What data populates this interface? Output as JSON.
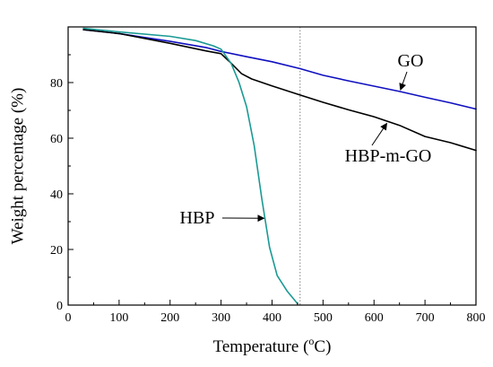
{
  "chart_data": {
    "type": "line",
    "title": "",
    "xlabel": "Temperature",
    "xlabel_unit_superscript": "o",
    "xlabel_unit": "C",
    "ylabel": "Weight percentage (%)",
    "xlim": [
      0,
      800
    ],
    "ylim": [
      0,
      100
    ],
    "xticks": [
      0,
      100,
      200,
      300,
      400,
      500,
      600,
      700,
      800
    ],
    "yticks": [
      0,
      20,
      40,
      60,
      80
    ],
    "grid": false,
    "legend": "none",
    "reference_lines": [
      {
        "axis": "x",
        "value": 455,
        "style": "dotted",
        "color": "#808080"
      }
    ],
    "series": [
      {
        "name": "GO",
        "color": "#1010c0",
        "points": [
          [
            30,
            99
          ],
          [
            100,
            97.6
          ],
          [
            200,
            94.8
          ],
          [
            270,
            92.6
          ],
          [
            300,
            91.2
          ],
          [
            350,
            89.3
          ],
          [
            400,
            87.5
          ],
          [
            455,
            85
          ],
          [
            500,
            82.6
          ],
          [
            550,
            80.6
          ],
          [
            600,
            78.7
          ],
          [
            650,
            76.8
          ],
          [
            700,
            74.7
          ],
          [
            750,
            72.7
          ],
          [
            800,
            70.5
          ]
        ]
      },
      {
        "name": "HBP-m-GO",
        "color": "#000000",
        "points": [
          [
            30,
            99
          ],
          [
            100,
            97.6
          ],
          [
            200,
            94.1
          ],
          [
            270,
            91.4
          ],
          [
            300,
            90.4
          ],
          [
            320,
            86.9
          ],
          [
            340,
            83.2
          ],
          [
            360,
            81.3
          ],
          [
            400,
            78.8
          ],
          [
            455,
            75.5
          ],
          [
            500,
            72.9
          ],
          [
            550,
            70.2
          ],
          [
            600,
            67.7
          ],
          [
            650,
            64.6
          ],
          [
            700,
            60.6
          ],
          [
            750,
            58.4
          ],
          [
            800,
            55.6
          ]
        ]
      },
      {
        "name": "HBP",
        "color": "#1a9a94",
        "points": [
          [
            30,
            99.5
          ],
          [
            100,
            98.2
          ],
          [
            200,
            96.6
          ],
          [
            250,
            95.1
          ],
          [
            285,
            93.2
          ],
          [
            300,
            92
          ],
          [
            320,
            86.8
          ],
          [
            335,
            80.2
          ],
          [
            350,
            71.3
          ],
          [
            365,
            57.3
          ],
          [
            380,
            38.2
          ],
          [
            395,
            20.8
          ],
          [
            410,
            10.6
          ],
          [
            430,
            4.9
          ],
          [
            450,
            0.5
          ]
        ]
      }
    ],
    "annotations": [
      {
        "text": "GO",
        "series": "GO",
        "target": [
          652,
          77.4
        ]
      },
      {
        "text": "HBP-m-GO",
        "series": "HBP-m-GO",
        "target": [
          625,
          65.3
        ]
      },
      {
        "text": "HBP",
        "series": "HBP",
        "target": [
          384,
          31.2
        ]
      }
    ]
  }
}
